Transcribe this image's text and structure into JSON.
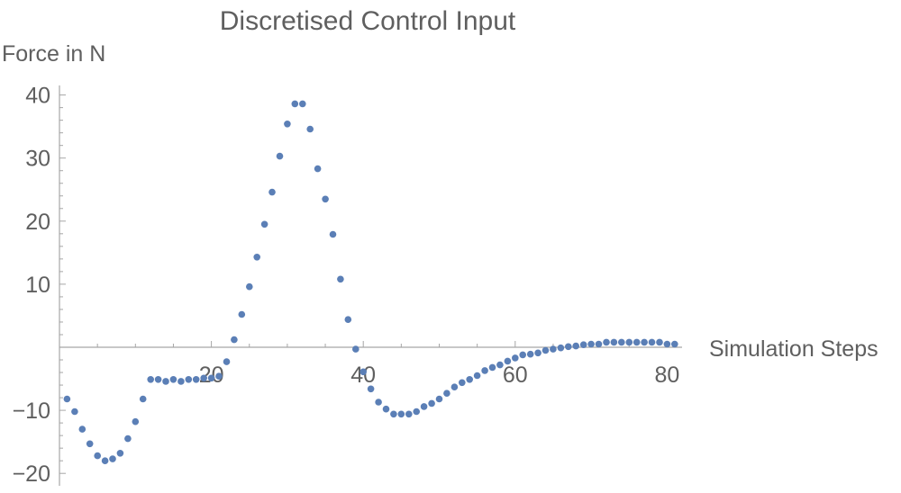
{
  "chart_data": {
    "type": "scatter",
    "title": "Discretised Control Input",
    "xlabel": "Simulation Steps",
    "ylabel": "Force in N",
    "xlim": [
      0,
      82
    ],
    "ylim": [
      -21,
      42
    ],
    "grid": false,
    "x_ticks": [
      20,
      40,
      60,
      80
    ],
    "y_ticks": [
      -20,
      -10,
      10,
      20,
      30,
      40
    ],
    "point_color": "#5b7fb6",
    "x": [
      1,
      2,
      3,
      4,
      5,
      6,
      7,
      8,
      9,
      10,
      11,
      12,
      13,
      14,
      15,
      16,
      17,
      18,
      19,
      20,
      21,
      22,
      23,
      24,
      25,
      26,
      27,
      28,
      29,
      30,
      31,
      32,
      33,
      34,
      35,
      36,
      37,
      38,
      39,
      40,
      41,
      42,
      43,
      44,
      45,
      46,
      47,
      48,
      49,
      50,
      51,
      52,
      53,
      54,
      55,
      56,
      57,
      58,
      59,
      60,
      61,
      62,
      63,
      64,
      65,
      66,
      67,
      68,
      69,
      70,
      71,
      72,
      73,
      74,
      75,
      76,
      77,
      78,
      79,
      80,
      81
    ],
    "y": [
      -8.2,
      -10.2,
      -13.0,
      -15.3,
      -17.2,
      -18.0,
      -17.7,
      -16.8,
      -14.5,
      -11.8,
      -8.2,
      -5.1,
      -5.1,
      -5.4,
      -5.1,
      -5.4,
      -5.1,
      -5.1,
      -4.9,
      -4.9,
      -4.6,
      -2.3,
      1.2,
      5.2,
      9.6,
      14.3,
      19.5,
      24.6,
      30.3,
      35.4,
      38.6,
      38.6,
      34.6,
      28.3,
      23.5,
      17.9,
      10.8,
      4.4,
      -0.3,
      -3.9,
      -6.6,
      -8.7,
      -9.8,
      -10.6,
      -10.6,
      -10.6,
      -10.2,
      -9.4,
      -8.9,
      -8.2,
      -7.3,
      -6.3,
      -5.6,
      -5.1,
      -4.5,
      -3.7,
      -3.2,
      -2.8,
      -2.2,
      -1.7,
      -1.2,
      -1.1,
      -0.9,
      -0.5,
      -0.3,
      -0.1,
      0.1,
      0.2,
      0.4,
      0.5,
      0.5,
      0.8,
      0.8,
      0.8,
      0.8,
      0.8,
      0.8,
      0.8,
      0.8,
      0.5,
      0.5
    ]
  }
}
